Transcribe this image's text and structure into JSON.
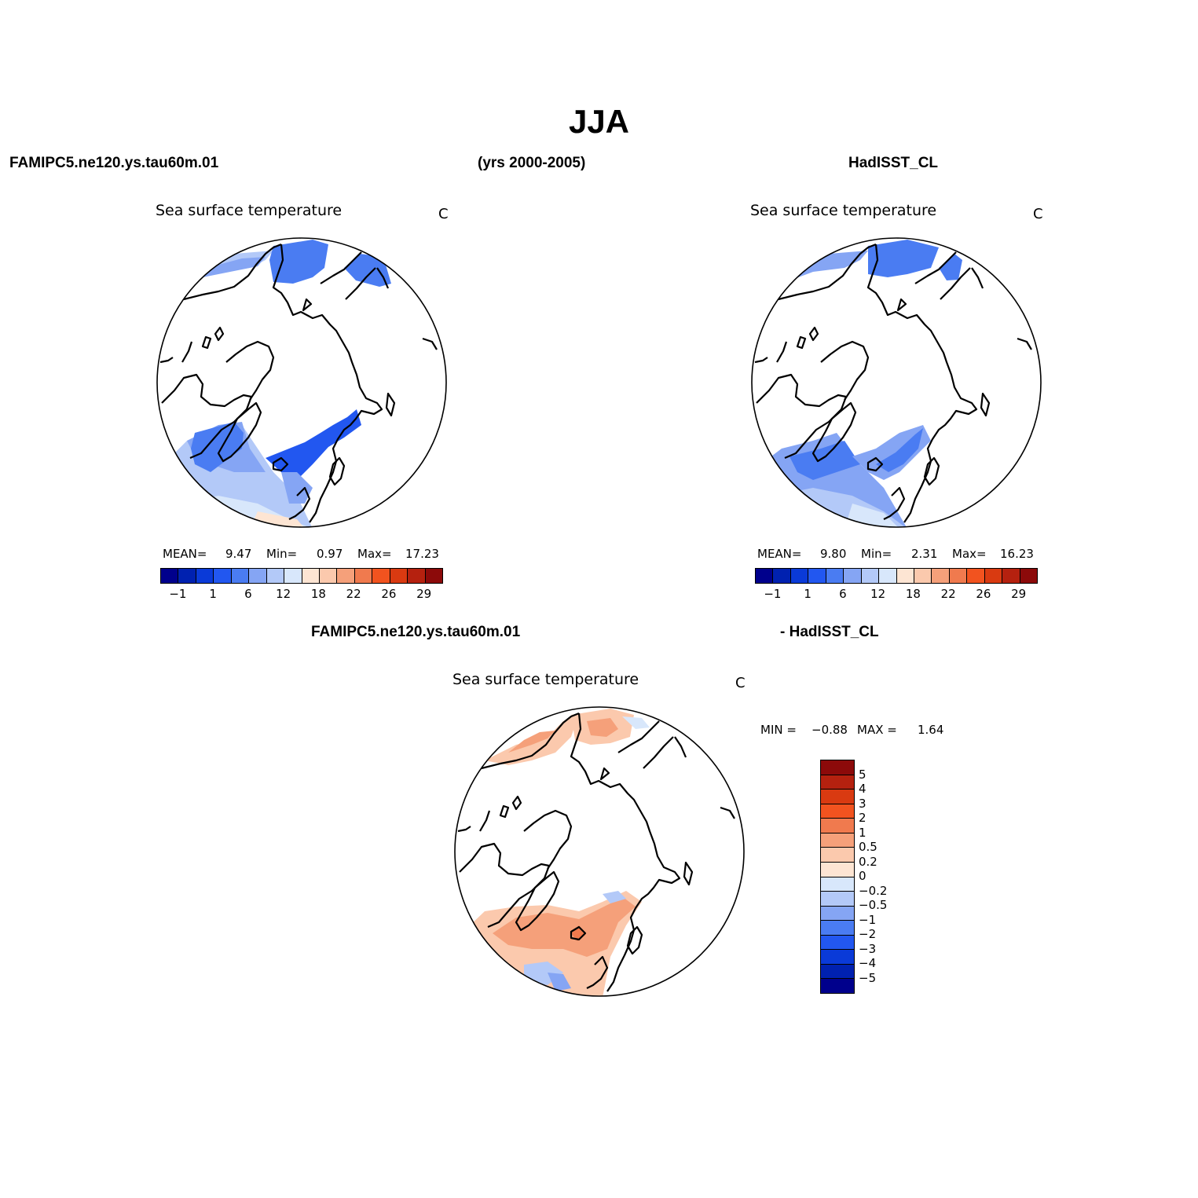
{
  "title": "JJA",
  "header": {
    "left": "FAMIPC5.ne120.ys.tau60m.01",
    "center": "(yrs 2000-2005)",
    "right": "HadISST_CL"
  },
  "diff_header": {
    "left": "FAMIPC5.ne120.ys.tau60m.01",
    "right": "- HadISST_CL"
  },
  "panels": [
    {
      "id": "model",
      "title": "Sea surface temperature",
      "unit": "C",
      "stats": {
        "mean_label": "MEAN=",
        "mean": "9.47",
        "min_label": "Min=",
        "min": "0.97",
        "max_label": "Max=",
        "max": "17.23"
      }
    },
    {
      "id": "obs",
      "title": "Sea surface temperature",
      "unit": "C",
      "stats": {
        "mean_label": "MEAN=",
        "mean": "9.80",
        "min_label": "Min=",
        "min": "2.31",
        "max_label": "Max=",
        "max": "16.23"
      }
    },
    {
      "id": "diff",
      "title": "Sea surface temperature",
      "unit": "C",
      "stats": {
        "min_label": "MIN =",
        "min": "−0.88",
        "max_label": "MAX =",
        "max": "1.64"
      }
    }
  ],
  "colorbar_main": {
    "colors": [
      "#00008c",
      "#0021b0",
      "#0a3ad8",
      "#2257f0",
      "#4a7cf2",
      "#85a5f4",
      "#b3c9f8",
      "#d8e7fb",
      "#fde5d3",
      "#fbc9ad",
      "#f5a07a",
      "#f07a4e",
      "#f2531f",
      "#d93a11",
      "#b5210f",
      "#8c0a0a"
    ],
    "tick_labels": [
      "−1",
      "1",
      "6",
      "12",
      "18",
      "22",
      "26",
      "29"
    ]
  },
  "colorbar_diff": {
    "colors": [
      "#8c0a0a",
      "#b5210f",
      "#d93a11",
      "#f2531f",
      "#f07a4e",
      "#f5a07a",
      "#fbc9ad",
      "#fde5d3",
      "#d8e7fb",
      "#b3c9f8",
      "#85a5f4",
      "#4a7cf2",
      "#2257f0",
      "#0a3ad8",
      "#0021b0",
      "#00008c"
    ],
    "tick_labels": [
      "5",
      "4",
      "3",
      "2",
      "1",
      "0.5",
      "0.2",
      "0",
      "−0.2",
      "−0.5",
      "−1",
      "−2",
      "−3",
      "−4",
      "−5"
    ]
  }
}
